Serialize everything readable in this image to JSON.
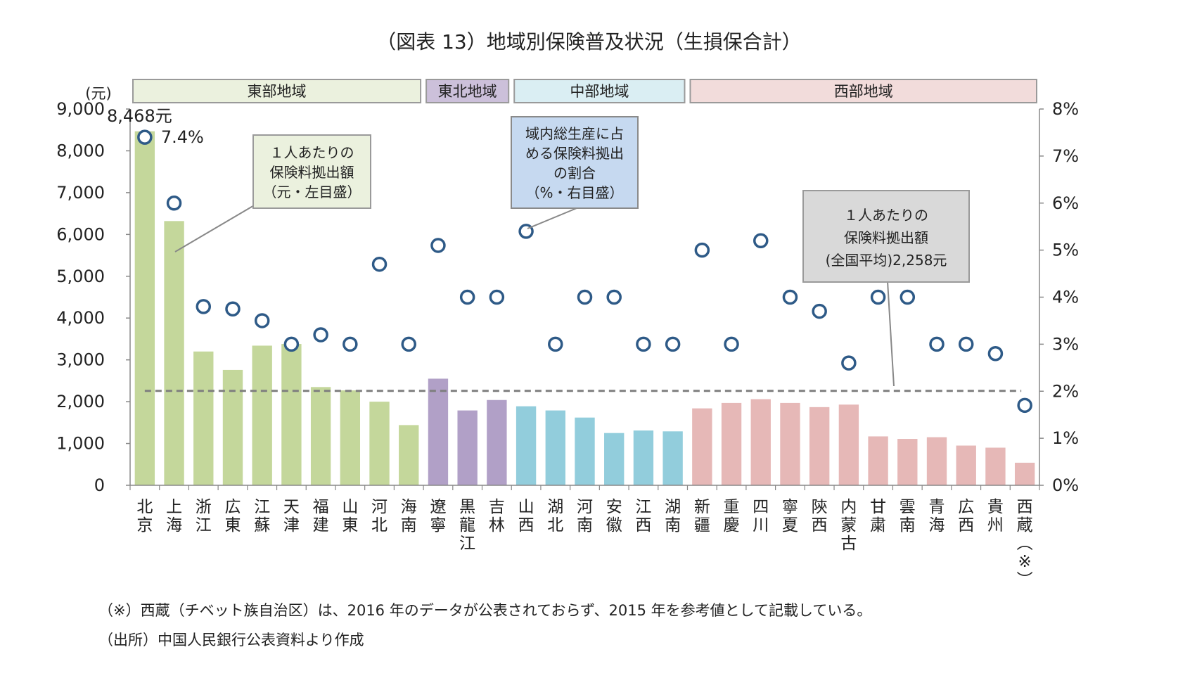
{
  "chart_data": {
    "type": "bar",
    "title": "（図表 13）地域別保険普及状況（生損保合計）",
    "y_left_unit": "(元)",
    "y_left_ticks": [
      "9,000",
      "8,000",
      "7,000",
      "6,000",
      "5,000",
      "4,000",
      "3,000",
      "2,000",
      "1,000",
      "0"
    ],
    "y_right_ticks": [
      "8%",
      "7%",
      "6%",
      "5%",
      "4%",
      "3%",
      "2%",
      "1%",
      "0%"
    ],
    "ylim_left": [
      0,
      9000
    ],
    "ylim_right": [
      0,
      8
    ],
    "regions": [
      {
        "name": "東部地域",
        "count": 10,
        "color": "#c4d79b",
        "header_color": "#ebf1de"
      },
      {
        "name": "東北地域",
        "count": 3,
        "color": "#b1a0c7",
        "header_color": "#ccc0da"
      },
      {
        "name": "中部地域",
        "count": 6,
        "color": "#92cddc",
        "header_color": "#daeef3"
      },
      {
        "name": "西部地域",
        "count": 12,
        "color": "#e6b8b7",
        "header_color": "#f2dcdb"
      }
    ],
    "categories": [
      "北京",
      "上海",
      "浙江",
      "広東",
      "江蘇",
      "天津",
      "福建",
      "山東",
      "河北",
      "海南",
      "遼寧",
      "黒龍江",
      "吉林",
      "山西",
      "湖北",
      "河南",
      "安徽",
      "江西",
      "湖南",
      "新疆",
      "重慶",
      "四川",
      "寧夏",
      "陝西",
      "内蒙古",
      "甘粛",
      "雲南",
      "青海",
      "広西",
      "貴州",
      "西蔵(※)"
    ],
    "series": [
      {
        "name": "1人あたりの保険料拠出額（元・左目盛）",
        "axis": "left",
        "values": [
          8468,
          6320,
          3200,
          2760,
          3340,
          3380,
          2350,
          2270,
          2000,
          1440,
          2550,
          1790,
          2040,
          1890,
          1790,
          1620,
          1250,
          1310,
          1290,
          1840,
          1970,
          2060,
          1970,
          1870,
          1930,
          1170,
          1110,
          1150,
          950,
          900,
          540
        ]
      },
      {
        "name": "域内総生産に占める保険料拠出の割合（%・右目盛）",
        "axis": "right",
        "values": [
          7.4,
          6.0,
          3.8,
          3.75,
          3.5,
          3.0,
          3.2,
          3.0,
          4.7,
          3.0,
          5.1,
          4.0,
          4.0,
          5.4,
          3.0,
          4.0,
          4.0,
          3.0,
          3.0,
          5.0,
          3.0,
          5.2,
          4.0,
          3.7,
          2.6,
          4.0,
          4.0,
          3.0,
          3.0,
          2.8,
          1.7
        ]
      }
    ],
    "national_average": 2258,
    "data_labels": {
      "beijing_amount": "8,468元",
      "beijing_ratio": "7.4%"
    },
    "callouts": {
      "amount": [
        "１人あたりの",
        "保険料拠出額",
        "（元・左目盛）"
      ],
      "ratio": [
        "域内総生産に占",
        "める保険料拠出",
        "の割合",
        "（%・右目盛）"
      ],
      "average": [
        "１人あたりの",
        "保険料拠出額",
        "(全国平均)2,258元"
      ]
    }
  },
  "footnote": "（※）西蔵（チベット族自治区）は、2016 年のデータが公表されておらず、2015 年を参考値として記載している。",
  "source": "（出所）中国人民銀行公表資料より作成"
}
